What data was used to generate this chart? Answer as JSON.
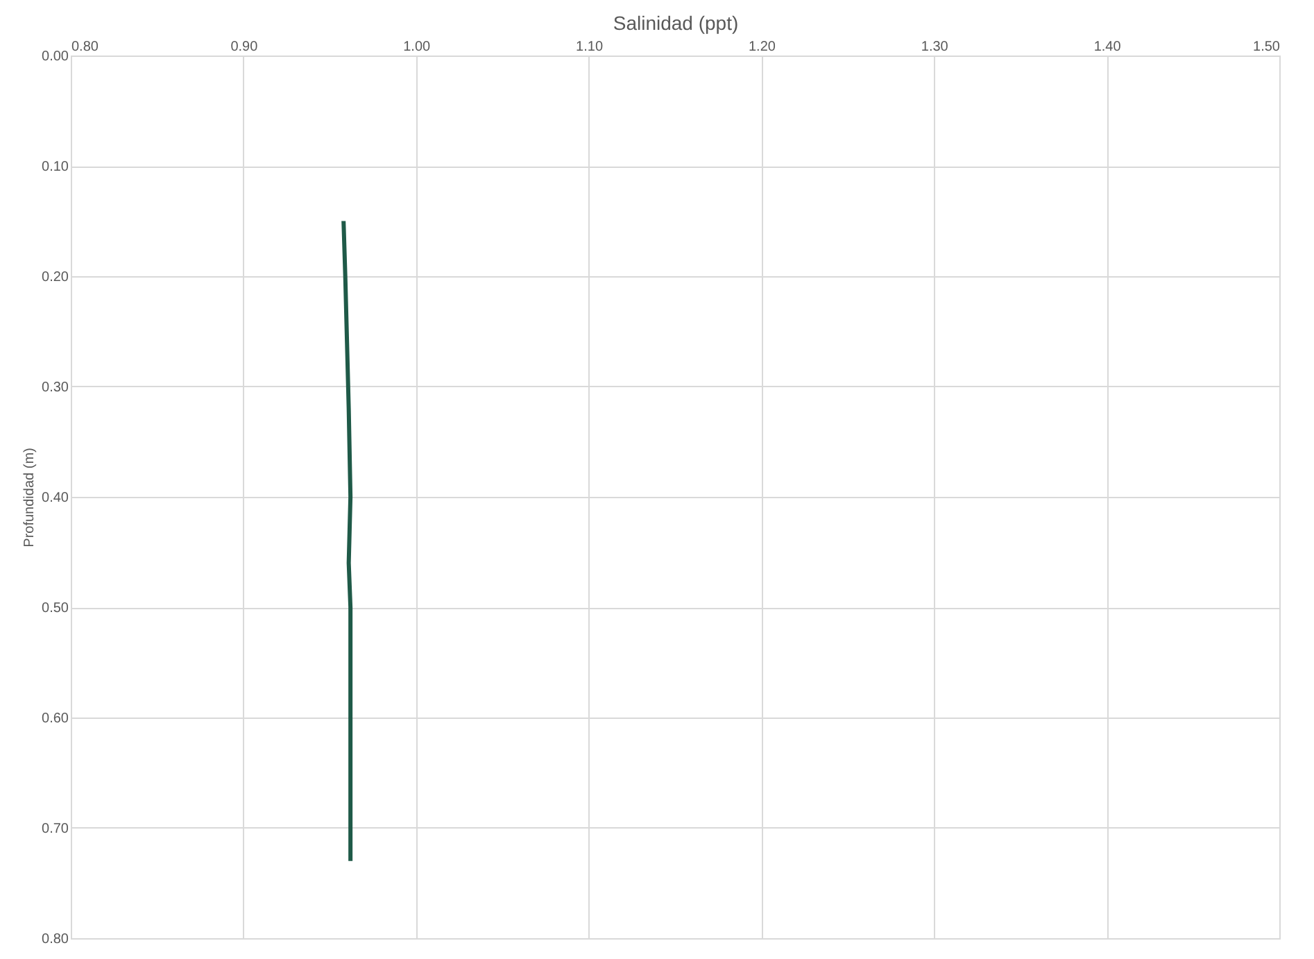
{
  "chart_data": {
    "type": "line",
    "xlabel": "Salinidad (ppt)",
    "ylabel": "Profundidad (m)",
    "series": [
      {
        "color": "#1f5a48",
        "x": [
          0.958,
          0.959,
          0.96,
          0.961,
          0.962,
          0.961,
          0.962,
          0.962,
          0.962
        ],
        "values": [
          0.15,
          0.2,
          0.26,
          0.32,
          0.4,
          0.46,
          0.5,
          0.6,
          0.73
        ]
      }
    ],
    "xlim": [
      0.8,
      1.5
    ],
    "xticks": [
      {
        "value": 0.8,
        "label": "0.80"
      },
      {
        "value": 0.9,
        "label": "0.90"
      },
      {
        "value": 1.0,
        "label": "1.00"
      },
      {
        "value": 1.1,
        "label": "1.10"
      },
      {
        "value": 1.2,
        "label": "1.20"
      },
      {
        "value": 1.3,
        "label": "1.30"
      },
      {
        "value": 1.4,
        "label": "1.40"
      },
      {
        "value": 1.5,
        "label": "1.50"
      }
    ],
    "ylim": [
      0.8,
      0.0
    ],
    "yticks": [
      {
        "value": 0.0,
        "label": "0.00"
      },
      {
        "value": 0.1,
        "label": "0.10"
      },
      {
        "value": 0.2,
        "label": "0.20"
      },
      {
        "value": 0.3,
        "label": "0.30"
      },
      {
        "value": 0.4,
        "label": "0.40"
      },
      {
        "value": 0.5,
        "label": "0.50"
      },
      {
        "value": 0.6,
        "label": "0.60"
      },
      {
        "value": 0.7,
        "label": "0.70"
      },
      {
        "value": 0.8,
        "label": "0.80"
      }
    ],
    "grid": true,
    "marker": "none",
    "line_style": "solid"
  }
}
